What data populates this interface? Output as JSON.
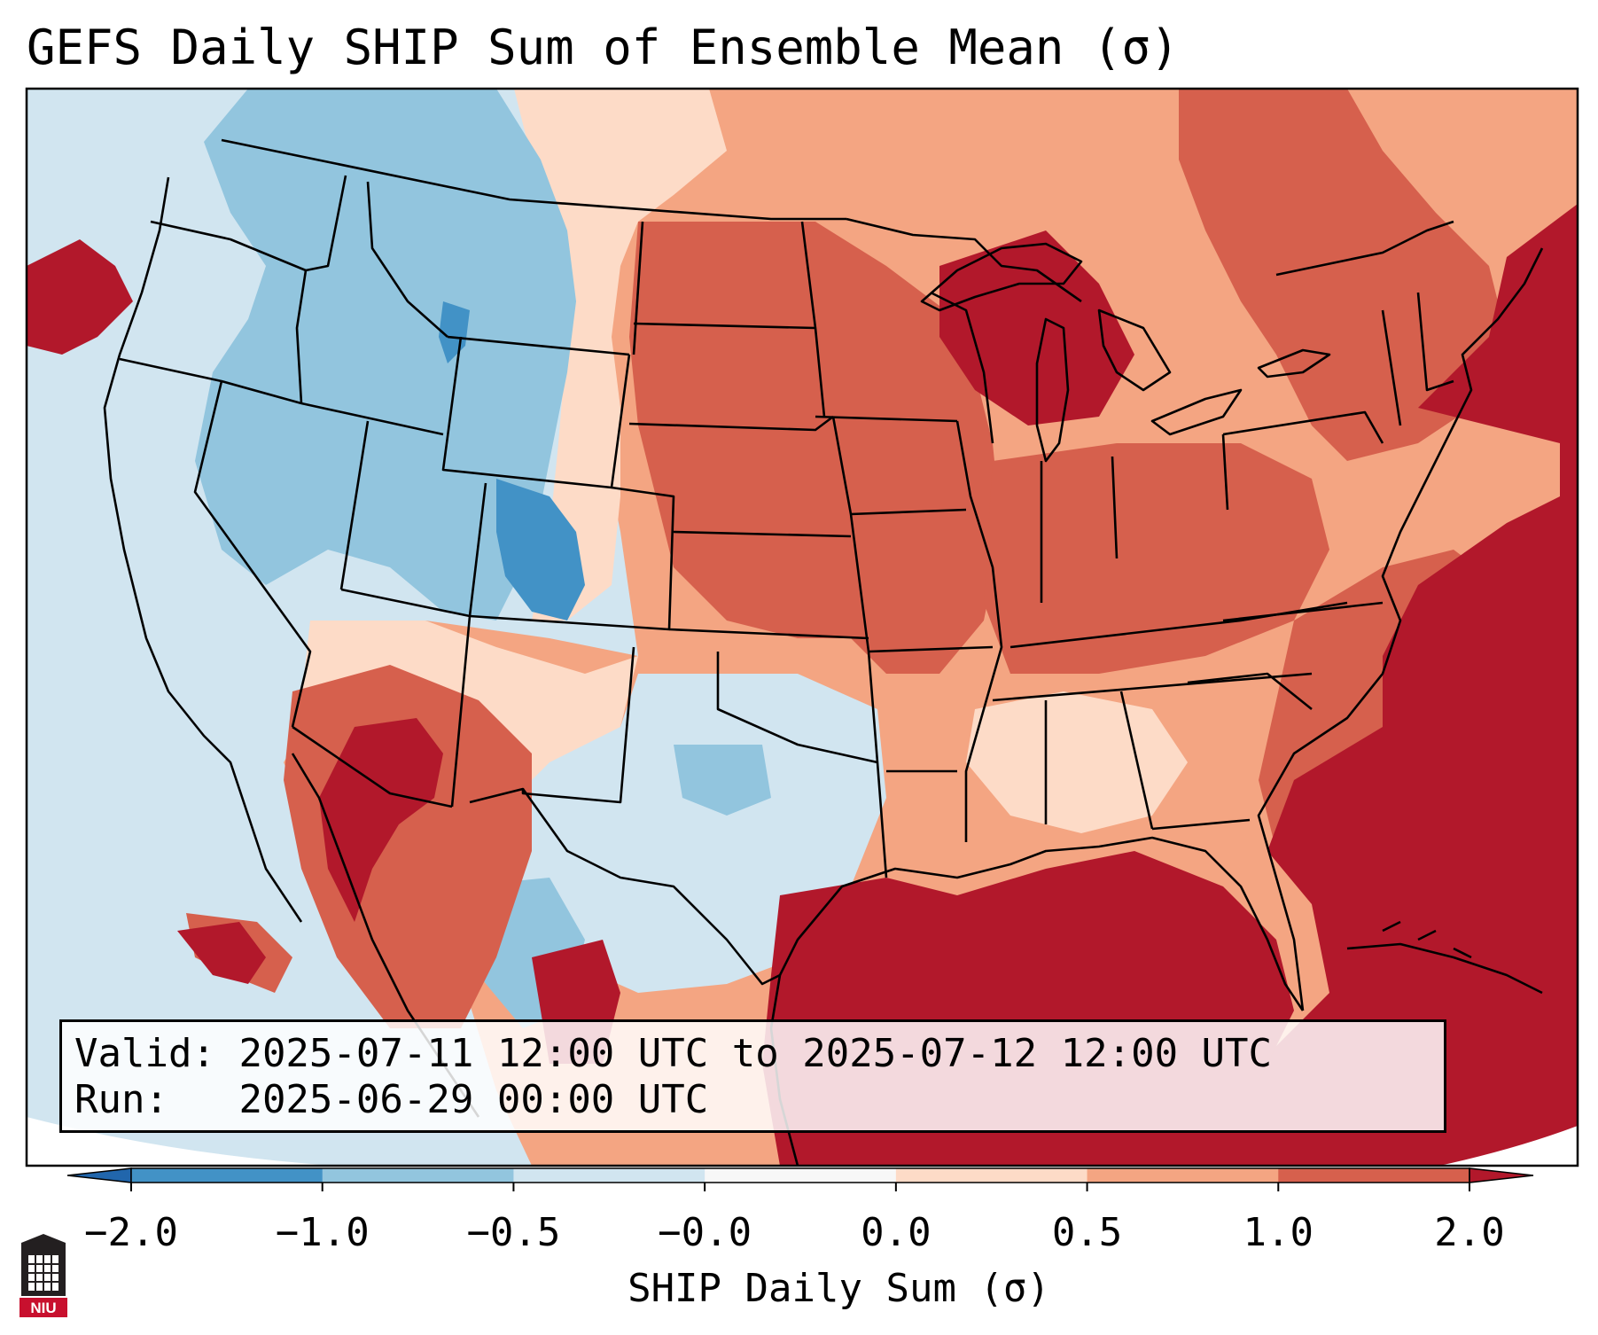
{
  "title": "GEFS Daily SHIP Sum of Ensemble Mean (σ)",
  "info": {
    "valid_label": "Valid:",
    "valid_value": "2025-07-11 12:00 UTC to 2025-07-12 12:00 UTC",
    "run_label": "Run:",
    "run_value": "2025-06-29 00:00 UTC"
  },
  "colorbar": {
    "label": "SHIP Daily Sum (σ)",
    "ticks": [
      "−2.0",
      "−1.0",
      "−0.5",
      "−0.0",
      "0.0",
      "0.5",
      "1.0",
      "2.0"
    ],
    "bins": [
      {
        "from": "-2.0",
        "to": "-1.0",
        "color": "#4292c6"
      },
      {
        "from": "-1.0",
        "to": "-0.5",
        "color": "#92c5de"
      },
      {
        "from": "-0.5",
        "to": "-0.0",
        "color": "#d1e5f0"
      },
      {
        "from": "-0.0",
        "to": "0.0",
        "color": "#f7f7f7"
      },
      {
        "from": "0.0",
        "to": "0.5",
        "color": "#fddbc7"
      },
      {
        "from": "0.5",
        "to": "1.0",
        "color": "#f4a582"
      },
      {
        "from": "1.0",
        "to": "2.0",
        "color": "#d6604d"
      }
    ],
    "under_color": "#2166ac",
    "over_color": "#b2182b"
  },
  "logo": {
    "text": "NIU",
    "color": "#c8102e"
  },
  "colors": {
    "dark_blue": "#4292c6",
    "mid_blue": "#92c5de",
    "light_blue": "#d1e5f0",
    "light_pink": "#fddbc7",
    "salmon": "#f4a582",
    "red": "#d6604d",
    "dark_red": "#b2182b",
    "border": "#000000"
  }
}
